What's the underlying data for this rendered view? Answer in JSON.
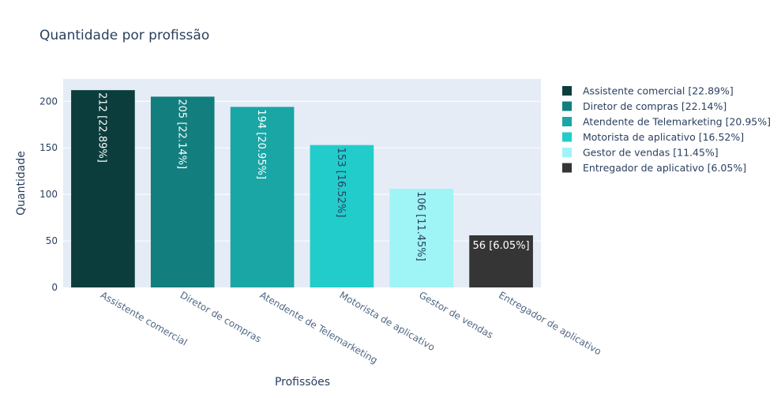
{
  "chart_data": {
    "type": "bar",
    "title": "Quantidade por profissão",
    "xlabel": "Profissões",
    "ylabel": "Quantidade",
    "ylim": [
      0,
      224
    ],
    "yticks": [
      0,
      50,
      100,
      150,
      200
    ],
    "grid": true,
    "legend_position": "right",
    "categories": [
      "Assistente comercial",
      "Diretor de compras",
      "Atendente de Telemarketing",
      "Motorista de aplicativo",
      "Gestor de vendas",
      "Entregador de aplicativo"
    ],
    "values": [
      212,
      205,
      194,
      153,
      106,
      56
    ],
    "series": [
      {
        "name": "Assistente comercial [22.89%]",
        "value": 212,
        "label": "212 [22.89%]",
        "color": "#0b3d3c",
        "label_color": "#ffffff",
        "label_orientation": "vertical"
      },
      {
        "name": "Diretor de compras [22.14%]",
        "value": 205,
        "label": "205 [22.14%]",
        "color": "#137e7e",
        "label_color": "#ffffff",
        "label_orientation": "vertical"
      },
      {
        "name": "Atendente de Telemarketing [20.95%]",
        "value": 194,
        "label": "194 [20.95%]",
        "color": "#1aa6a5",
        "label_color": "#ffffff",
        "label_orientation": "vertical"
      },
      {
        "name": "Motorista de aplicativo [16.52%]",
        "value": 153,
        "label": "153 [16.52%]",
        "color": "#22cccb",
        "label_color": "#2a3f5f",
        "label_orientation": "vertical"
      },
      {
        "name": "Gestor de vendas [11.45%]",
        "value": 106,
        "label": "106 [11.45%]",
        "color": "#9ff4f5",
        "label_color": "#2a3f5f",
        "label_orientation": "vertical"
      },
      {
        "name": "Entregador de aplicativo [6.05%]",
        "value": 56,
        "label": "56 [6.05%]",
        "color": "#353535",
        "label_color": "#ffffff",
        "label_orientation": "horizontal"
      }
    ],
    "colors": {
      "plot_background": "#e5ecf6",
      "grid": "#ffffff",
      "text": "#2a3f5f",
      "axis_text": "#506784",
      "tick_text": "#2a3f5f"
    }
  }
}
